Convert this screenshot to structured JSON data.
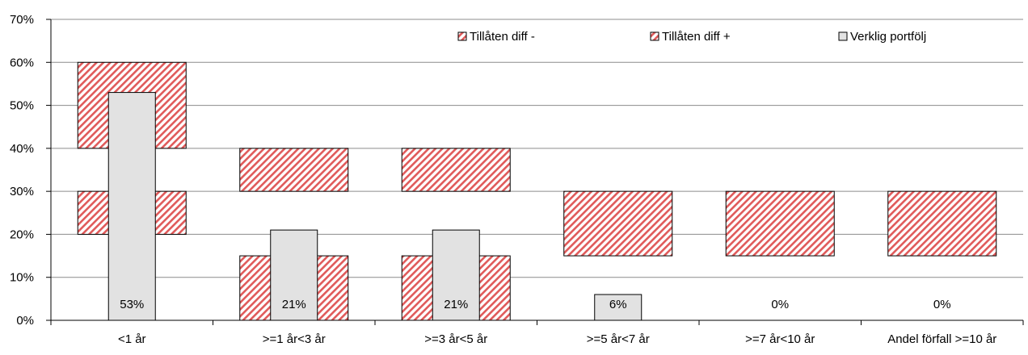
{
  "chart_data": {
    "type": "bar",
    "categories": [
      "<1 år",
      ">=1 år<3 år",
      ">=3 år<5 år",
      ">=5 år<7 år",
      ">=7 år<10 år",
      "Andel förfall >=10 år"
    ],
    "series": [
      {
        "name": "Tillåten diff -",
        "values": [
          10,
          15,
          15,
          0,
          0,
          0
        ],
        "base": [
          30,
          15,
          15,
          15,
          15,
          15
        ],
        "pattern": "hatch"
      },
      {
        "name": "Tillåten diff +",
        "values": [
          20,
          10,
          10,
          15,
          15,
          15
        ],
        "base": [
          40,
          30,
          30,
          15,
          15,
          15
        ],
        "pattern": "hatch"
      },
      {
        "name": "Verklig portfölj",
        "values": [
          53,
          21,
          21,
          6,
          0,
          0
        ]
      }
    ],
    "data_labels": [
      "53%",
      "21%",
      "21%",
      "6%",
      "0%",
      "0%"
    ],
    "yticks": [
      "0%",
      "10%",
      "20%",
      "30%",
      "40%",
      "50%",
      "60%",
      "70%"
    ],
    "ylim": [
      0,
      70
    ],
    "grid": true,
    "legend_position": "top-right",
    "colors": {
      "hatch_stripe": "#e05a5a",
      "hatch_bg": "#ffffff",
      "actual_fill": "#e2e2e2",
      "gridline": "#8c8c8c",
      "outline": "#000000"
    }
  }
}
